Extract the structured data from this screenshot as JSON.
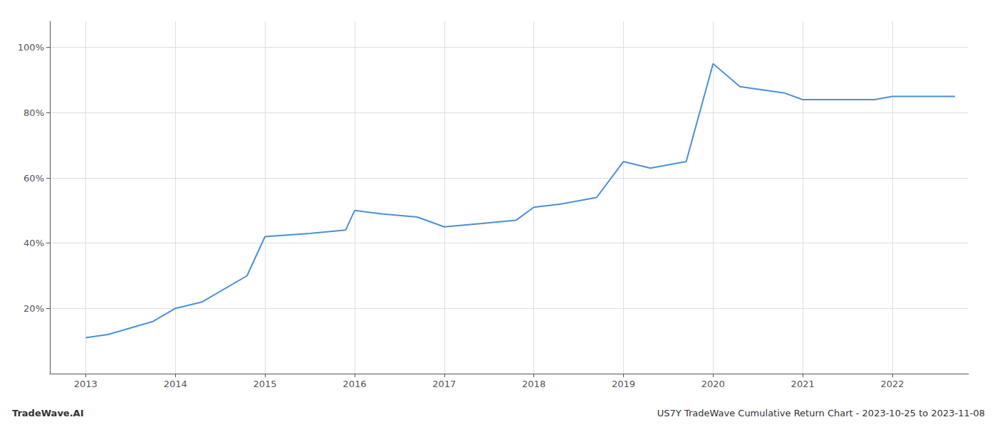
{
  "chart_data": {
    "type": "line",
    "title": "US7Y TradeWave Cumulative Return Chart - 2023-10-25 to 2023-11-08",
    "annotations": [
      "TradeWave.AI"
    ],
    "x": [
      2013,
      2013.25,
      2013.75,
      2014,
      2014.3,
      2014.8,
      2015.0,
      2015.5,
      2015.9,
      2016.0,
      2016.3,
      2016.7,
      2017.0,
      2017.4,
      2017.8,
      2018.0,
      2018.3,
      2018.7,
      2019.0,
      2019.3,
      2019.7,
      2020.0,
      2020.3,
      2020.8,
      2021.0,
      2021.3,
      2021.8,
      2022.0,
      2022.3,
      2022.7
    ],
    "values": [
      11,
      12,
      16,
      20,
      22,
      30,
      42,
      43,
      44,
      50,
      49,
      48,
      45,
      46,
      47,
      51,
      52,
      54,
      65,
      63,
      65,
      95,
      88,
      86,
      84,
      84,
      84,
      85,
      85,
      85
    ],
    "color": "#4a90d9",
    "xlim": [
      2012.6,
      2022.85
    ],
    "xticks": [
      2013,
      2014,
      2015,
      2016,
      2017,
      2018,
      2019,
      2020,
      2021,
      2022
    ],
    "ylim": [
      0,
      108
    ],
    "yticks": [
      {
        "value": 20,
        "label": "20%"
      },
      {
        "value": 40,
        "label": "40%"
      },
      {
        "value": 60,
        "label": "60%"
      },
      {
        "value": 80,
        "label": "80%"
      },
      {
        "value": 100,
        "label": "100%"
      }
    ],
    "grid": true
  }
}
